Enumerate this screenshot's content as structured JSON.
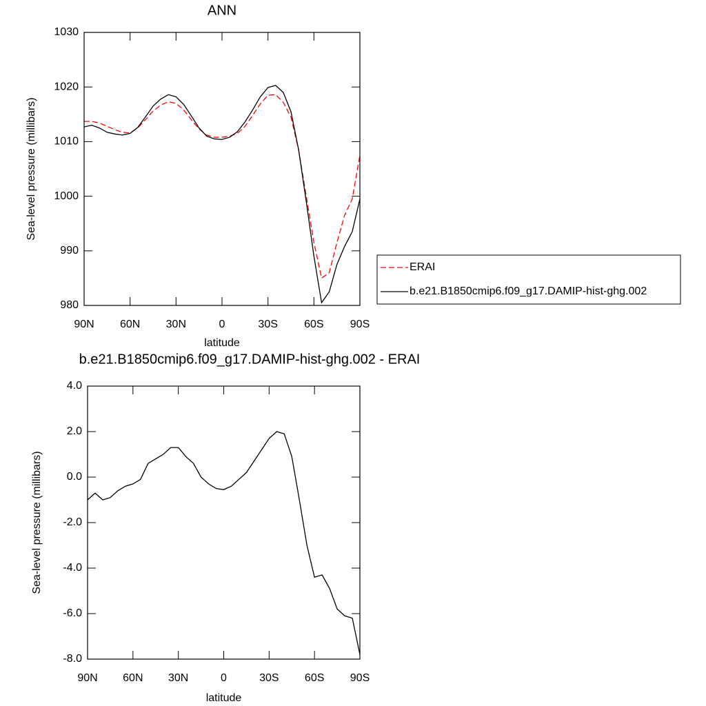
{
  "chart_data": [
    {
      "type": "line",
      "title": "ANN",
      "x_label": "latitude",
      "y_label": "Sea-level pressure (millibars)",
      "x": [
        90,
        85,
        80,
        75,
        70,
        65,
        60,
        55,
        50,
        45,
        40,
        35,
        30,
        25,
        20,
        15,
        10,
        5,
        0,
        -5,
        -10,
        -15,
        -20,
        -25,
        -30,
        -35,
        -40,
        -45,
        -50,
        -55,
        -60,
        -65,
        -70,
        -75,
        -80,
        -85,
        -90
      ],
      "series": [
        {
          "name": "ERAI",
          "color": "#ff0000",
          "line_style": "dashed",
          "values": [
            1013.7,
            1013.7,
            1013.4,
            1012.8,
            1012.2,
            1011.7,
            1011.6,
            1012.5,
            1014.0,
            1015.6,
            1016.7,
            1017.3,
            1017.0,
            1015.8,
            1014.0,
            1012.3,
            1011.2,
            1010.8,
            1010.8,
            1011.0,
            1011.5,
            1012.8,
            1014.8,
            1016.9,
            1018.5,
            1018.6,
            1017.2,
            1014.5,
            1008.5,
            1000.0,
            991.5,
            985.0,
            986.0,
            991.5,
            996.5,
            999.5,
            1007.5
          ]
        },
        {
          "name": "b.e21.B1850cmip6.f09_g17.DAMIP-hist-ghg.002",
          "color": "#000000",
          "line_style": "solid",
          "values": [
            1012.7,
            1013.0,
            1012.5,
            1011.7,
            1011.4,
            1011.2,
            1011.5,
            1012.6,
            1014.5,
            1016.5,
            1017.8,
            1018.6,
            1018.2,
            1016.8,
            1014.7,
            1012.5,
            1011.0,
            1010.5,
            1010.4,
            1010.8,
            1011.8,
            1013.6,
            1015.8,
            1018.2,
            1019.9,
            1020.3,
            1019.0,
            1015.5,
            1008.5,
            999.0,
            989.0,
            980.5,
            982.5,
            987.5,
            990.8,
            993.5,
            999.5
          ]
        }
      ],
      "xlim": [
        90,
        -90
      ],
      "xticks": [
        {
          "value": 90,
          "label": "90N"
        },
        {
          "value": 60,
          "label": "60N"
        },
        {
          "value": 30,
          "label": "30N"
        },
        0,
        {
          "value": -30,
          "label": "30S"
        },
        {
          "value": -60,
          "label": "60S"
        },
        {
          "value": -90,
          "label": "90S"
        }
      ],
      "ylim": [
        980,
        1030
      ],
      "yticks": [
        980,
        990,
        1000,
        1010,
        1020,
        1030
      ],
      "legend": "right"
    },
    {
      "type": "line",
      "title": "b.e21.B1850cmip6.f09_g17.DAMIP-hist-ghg.002 - ERAI",
      "x_label": "latitude",
      "y_label": "Sea-level pressure (millibars)",
      "x": [
        90,
        85,
        80,
        75,
        70,
        65,
        60,
        55,
        50,
        45,
        40,
        35,
        30,
        25,
        20,
        15,
        10,
        5,
        0,
        -5,
        -10,
        -15,
        -20,
        -25,
        -30,
        -35,
        -40,
        -45,
        -50,
        -55,
        -60,
        -65,
        -70,
        -75,
        -80,
        -85,
        -90
      ],
      "series": [
        {
          "color": "#000000",
          "line_style": "solid",
          "values": [
            -1.0,
            -0.7,
            -1.0,
            -0.9,
            -0.6,
            -0.4,
            -0.3,
            -0.1,
            0.6,
            0.8,
            1.0,
            1.3,
            1.3,
            0.9,
            0.6,
            0.0,
            -0.3,
            -0.5,
            -0.55,
            -0.4,
            -0.1,
            0.2,
            0.7,
            1.2,
            1.7,
            2.0,
            1.9,
            0.9,
            -1.0,
            -3.0,
            -4.4,
            -4.3,
            -4.9,
            -5.8,
            -6.1,
            -6.2,
            -7.8
          ]
        }
      ],
      "xlim": [
        90,
        -90
      ],
      "xticks": [
        {
          "value": 90,
          "label": "90N"
        },
        {
          "value": 60,
          "label": "60N"
        },
        {
          "value": 30,
          "label": "30N"
        },
        0,
        {
          "value": -30,
          "label": "30S"
        },
        {
          "value": -60,
          "label": "60S"
        },
        {
          "value": -90,
          "label": "90S"
        }
      ],
      "ylim": [
        -8,
        4
      ],
      "yticks": [
        {
          "value": -8,
          "label": "-8.0"
        },
        {
          "value": -6,
          "label": "-6.0"
        },
        {
          "value": -4,
          "label": "-4.0"
        },
        {
          "value": -2,
          "label": "-2.0"
        },
        {
          "value": 0,
          "label": "0.0"
        },
        {
          "value": 2,
          "label": "2.0"
        },
        {
          "value": 4,
          "label": "4.0"
        }
      ]
    }
  ]
}
